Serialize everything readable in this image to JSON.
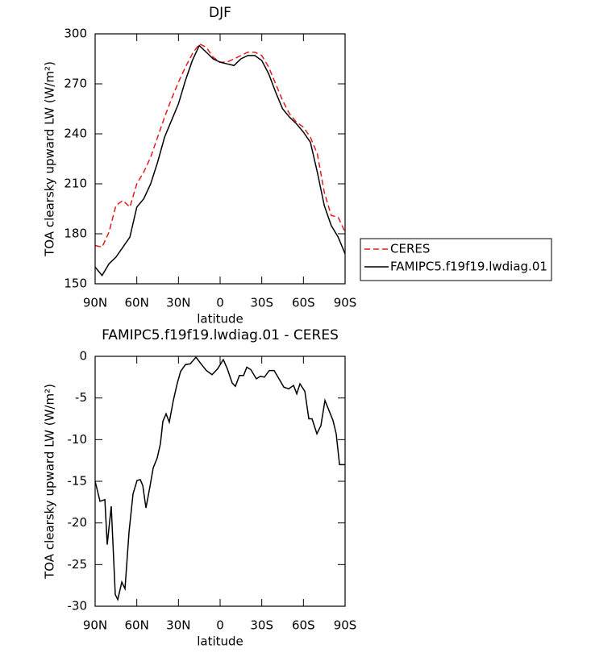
{
  "chart_data": [
    {
      "type": "line",
      "title": "DJF",
      "xlabel": "latitude",
      "ylabel": "TOA clearsky upward LW (W/m²)",
      "x": [
        90,
        85,
        80,
        75,
        70,
        65,
        60,
        55,
        50,
        45,
        40,
        35,
        30,
        25,
        20,
        15,
        10,
        5,
        0,
        -5,
        -10,
        -15,
        -20,
        -25,
        -30,
        -35,
        -40,
        -45,
        -50,
        -55,
        -60,
        -65,
        -70,
        -75,
        -80,
        -85,
        -90
      ],
      "series": [
        {
          "name": "CERES",
          "color": "#e41a1c",
          "dash": true,
          "values": [
            173,
            172,
            181,
            197,
            200,
            196,
            210,
            217,
            226,
            238,
            250,
            261,
            271,
            280,
            288,
            294,
            292,
            286,
            283,
            283,
            285,
            287,
            289,
            289,
            287,
            280,
            270,
            260,
            252,
            247,
            244,
            238,
            228,
            205,
            191,
            190,
            181
          ]
        },
        {
          "name": "FAMIPC5.f19f19.lwdiag.01",
          "color": "#000000",
          "dash": false,
          "values": [
            160,
            155,
            162,
            166,
            172,
            178,
            196,
            201,
            210,
            223,
            238,
            248,
            258,
            272,
            284,
            293,
            289,
            285,
            283,
            282,
            281,
            285,
            287,
            287,
            284,
            276,
            265,
            255,
            250,
            246,
            241,
            235,
            217,
            197,
            185,
            178,
            168
          ]
        }
      ],
      "xlim": [
        90,
        -90
      ],
      "xticks": [
        {
          "value": 90,
          "label": "90N"
        },
        {
          "value": 60,
          "label": "60N"
        },
        {
          "value": 30,
          "label": "30N"
        },
        0,
        {
          "value": -30,
          "label": "30S"
        },
        {
          "value": -60,
          "label": "60S"
        },
        {
          "value": -90,
          "label": "90S"
        }
      ],
      "ylim": [
        150,
        300
      ],
      "yticks": [
        150,
        180,
        210,
        240,
        270,
        300
      ],
      "legend": "outside right"
    },
    {
      "type": "line",
      "title": "FAMIPC5.f19f19.lwdiag.01 - CERES",
      "xlabel": "latitude",
      "ylabel": "TOA clearsky upward LW (W/m²)",
      "x": [
        90,
        86.5,
        83,
        81.3,
        78.4,
        75.5,
        73.7,
        70.8,
        68.5,
        65.6,
        62.7,
        59.8,
        57.5,
        55.7,
        53.4,
        50.5,
        48.2,
        45.3,
        43,
        41.2,
        38.9,
        36.6,
        33.7,
        30.8,
        28.4,
        25,
        21.5,
        17.4,
        13.3,
        9.9,
        5.8,
        1.8,
        -2.3,
        -5.2,
        -8.7,
        -11,
        -13.9,
        -16.9,
        -19.2,
        -22.1,
        -26.1,
        -29,
        -31.9,
        -35.4,
        -38.9,
        -42.4,
        -45.9,
        -49.4,
        -52.9,
        -55.2,
        -57.5,
        -61,
        -63.9,
        -66.2,
        -69.7,
        -72.6,
        -75.5,
        -78.4,
        -81.3,
        -83.6,
        -86,
        -90
      ],
      "series": [
        {
          "color": "#000000",
          "dash": false,
          "values": [
            -15,
            -17.4,
            -17.2,
            -22.6,
            -18,
            -28.6,
            -29.2,
            -27.1,
            -27.9,
            -21.1,
            -16.5,
            -14.9,
            -14.8,
            -15.5,
            -18.2,
            -15.6,
            -13.4,
            -12.2,
            -10.5,
            -7.8,
            -6.9,
            -7.9,
            -5.3,
            -3.2,
            -1.8,
            -1,
            -0.9,
            -0.1,
            -1,
            -1.7,
            -2.2,
            -1.5,
            -0.4,
            -1.5,
            -3.2,
            -3.6,
            -2.3,
            -2.3,
            -1.3,
            -1.6,
            -2.7,
            -2.4,
            -2.5,
            -1.7,
            -1.7,
            -2.7,
            -3.7,
            -3.9,
            -3.5,
            -4.5,
            -3.3,
            -4.2,
            -7.5,
            -7.5,
            -9.3,
            -8.3,
            -5.3,
            -6.5,
            -7.7,
            -9.3,
            -13,
            -13
          ]
        }
      ],
      "xlim": [
        90,
        -90
      ],
      "xticks": [
        {
          "value": 90,
          "label": "90N"
        },
        {
          "value": 60,
          "label": "60N"
        },
        {
          "value": 30,
          "label": "30N"
        },
        0,
        {
          "value": -30,
          "label": "30S"
        },
        {
          "value": -60,
          "label": "60S"
        },
        {
          "value": -90,
          "label": "90S"
        }
      ],
      "ylim": [
        -30,
        0
      ],
      "yticks": [
        -30,
        -25,
        -20,
        -15,
        -10,
        -5,
        0
      ]
    }
  ]
}
